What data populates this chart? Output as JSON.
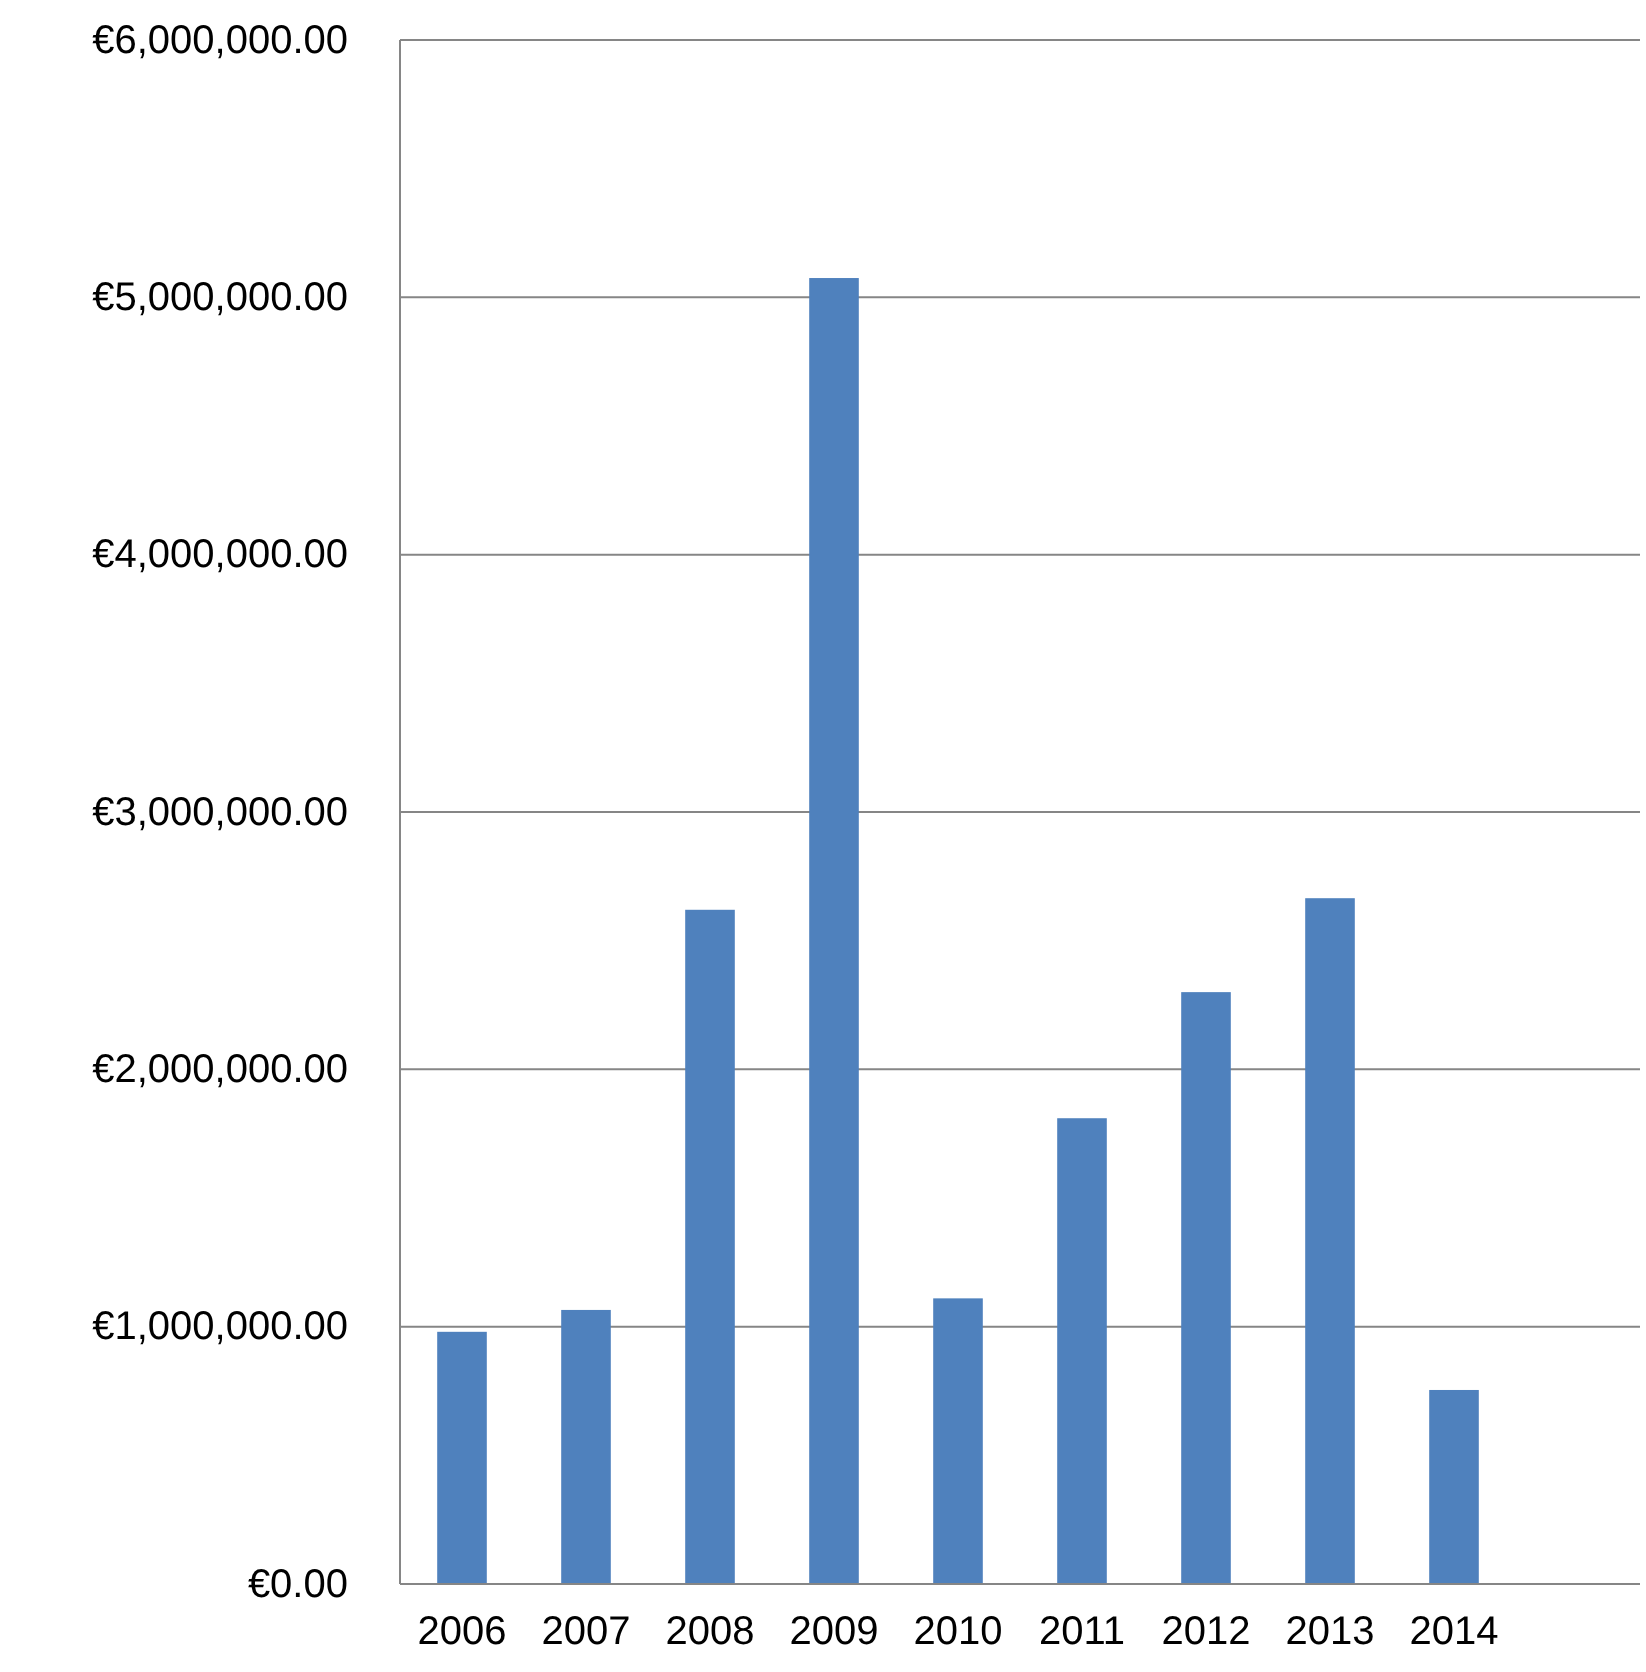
{
  "chart_data": {
    "type": "bar",
    "categories": [
      "2006",
      "2007",
      "2008",
      "2009",
      "2010",
      "2011",
      "2012",
      "2013",
      "2014",
      null
    ],
    "values": [
      980000,
      1065000,
      2620000,
      5075000,
      1110000,
      1810000,
      2300000,
      2665000,
      754000,
      null
    ],
    "color": "#4f81bd",
    "ylim": [
      0,
      6000000
    ],
    "yticks": [
      {
        "value": 0,
        "label": "€0.00"
      },
      {
        "value": 1000000,
        "label": "€1,000,000.00"
      },
      {
        "value": 2000000,
        "label": "€2,000,000.00"
      },
      {
        "value": 3000000,
        "label": "€3,000,000.00"
      },
      {
        "value": 4000000,
        "label": "€4,000,000.00"
      },
      {
        "value": 5000000,
        "label": "€5,000,000.00"
      },
      {
        "value": 6000000,
        "label": "€6,000,000.00"
      }
    ],
    "grid": "y"
  }
}
